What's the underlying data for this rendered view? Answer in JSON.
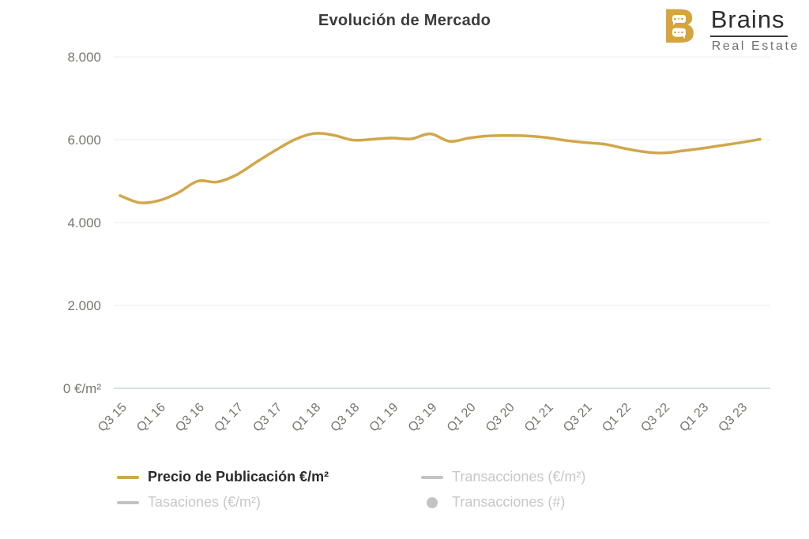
{
  "logo": {
    "monogram": "B",
    "brand": "Brains",
    "subtitle": "Real Estate",
    "gold": "#d5a53c"
  },
  "chart_data": {
    "type": "line",
    "title": "Evolución de Mercado",
    "grid": true,
    "legend_position": "bottom",
    "ylim": [
      0,
      8000
    ],
    "y_ticks": [
      {
        "value": 0,
        "label": "0 €/m²"
      },
      {
        "value": 2000,
        "label": "2.000"
      },
      {
        "value": 4000,
        "label": "4.000"
      },
      {
        "value": 6000,
        "label": "6.000"
      },
      {
        "value": 8000,
        "label": "8.000"
      }
    ],
    "x": [
      "Q3 15",
      "Q4 15",
      "Q1 16",
      "Q2 16",
      "Q3 16",
      "Q4 16",
      "Q1 17",
      "Q2 17",
      "Q3 17",
      "Q4 17",
      "Q1 18",
      "Q2 18",
      "Q3 18",
      "Q4 18",
      "Q1 19",
      "Q2 19",
      "Q3 19",
      "Q4 19",
      "Q1 20",
      "Q2 20",
      "Q3 20",
      "Q4 20",
      "Q1 21",
      "Q2 21",
      "Q3 21",
      "Q4 21",
      "Q1 22",
      "Q2 22",
      "Q3 22",
      "Q4 22",
      "Q1 23",
      "Q2 23",
      "Q3 23",
      "Q4 23"
    ],
    "x_tick_labels": [
      "Q3 15",
      "Q1 16",
      "Q3 16",
      "Q1 17",
      "Q3 17",
      "Q1 18",
      "Q3 18",
      "Q1 19",
      "Q3 19",
      "Q1 20",
      "Q3 20",
      "Q1 21",
      "Q3 21",
      "Q1 22",
      "Q3 22",
      "Q1 23",
      "Q3 23"
    ],
    "series": [
      {
        "name": "Precio de Publicación €/m²",
        "color": "#d1a74a",
        "values": [
          4650,
          4480,
          4530,
          4720,
          5000,
          4980,
          5150,
          5450,
          5740,
          6000,
          6150,
          6110,
          5990,
          6010,
          6040,
          6020,
          6140,
          5960,
          6040,
          6090,
          6100,
          6090,
          6050,
          5980,
          5930,
          5890,
          5790,
          5710,
          5680,
          5730,
          5790,
          5860,
          5930,
          6010
        ]
      }
    ],
    "legend": [
      {
        "label": "Precio de Publicación €/m²",
        "marker": "line",
        "color": "#d1a74a",
        "active": true
      },
      {
        "label": "Transacciones (€/m²)",
        "marker": "line",
        "color": "#c3c3c3",
        "active": false
      },
      {
        "label": "Tasaciones (€/m²)",
        "marker": "line",
        "color": "#c3c3c3",
        "active": false
      },
      {
        "label": "Transacciones (#)",
        "marker": "circle",
        "color": "#c3c3c3",
        "active": false
      }
    ],
    "colors": {
      "grid": "#ebebeb",
      "zero_axis": "#d9e2dd",
      "axis_label": "#76766f",
      "title": "#3b3b3b"
    }
  }
}
